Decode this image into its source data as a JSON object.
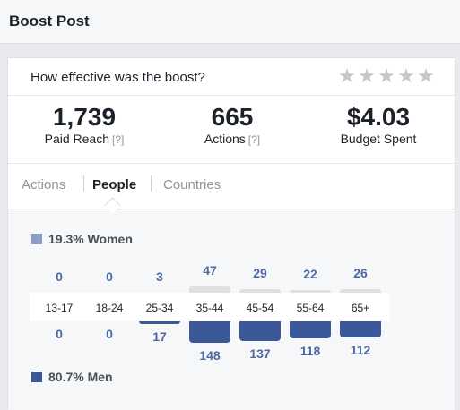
{
  "header": {
    "title": "Boost Post"
  },
  "question": "How effective was the boost?",
  "rating": {
    "stars": 5,
    "icon": "star-icon"
  },
  "stats": [
    {
      "value": "1,739",
      "label": "Paid Reach",
      "help": "[?]"
    },
    {
      "value": "665",
      "label": "Actions",
      "help": "[?]"
    },
    {
      "value": "$4.03",
      "label": "Budget Spent"
    }
  ],
  "tabs": [
    {
      "label": "Actions",
      "active": false
    },
    {
      "label": "People",
      "active": true
    },
    {
      "label": "Countries",
      "active": false
    }
  ],
  "women": {
    "label": "19.3% Women",
    "color": "#8b9dc3"
  },
  "men": {
    "label": "80.7% Men",
    "color": "#3b5998"
  },
  "chart_data": {
    "type": "bar",
    "categories": [
      "13-17",
      "18-24",
      "25-34",
      "35-44",
      "45-54",
      "55-64",
      "65+"
    ],
    "series": [
      {
        "name": "19.3% Women",
        "values": [
          0,
          0,
          3,
          47,
          29,
          22,
          26
        ]
      },
      {
        "name": "80.7% Men",
        "values": [
          0,
          0,
          17,
          148,
          137,
          118,
          112
        ]
      }
    ]
  }
}
